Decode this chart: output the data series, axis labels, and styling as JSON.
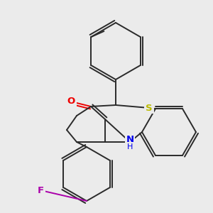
{
  "bg_color": "#ebebeb",
  "bond_color": "#2a2a2a",
  "atom_colors": {
    "S": "#bbbb00",
    "N": "#0000ee",
    "O": "#ee0000",
    "F": "#aa00aa",
    "C": "#2a2a2a"
  },
  "figsize": [
    3.0,
    3.0
  ],
  "dpi": 100,
  "lw": 1.4
}
